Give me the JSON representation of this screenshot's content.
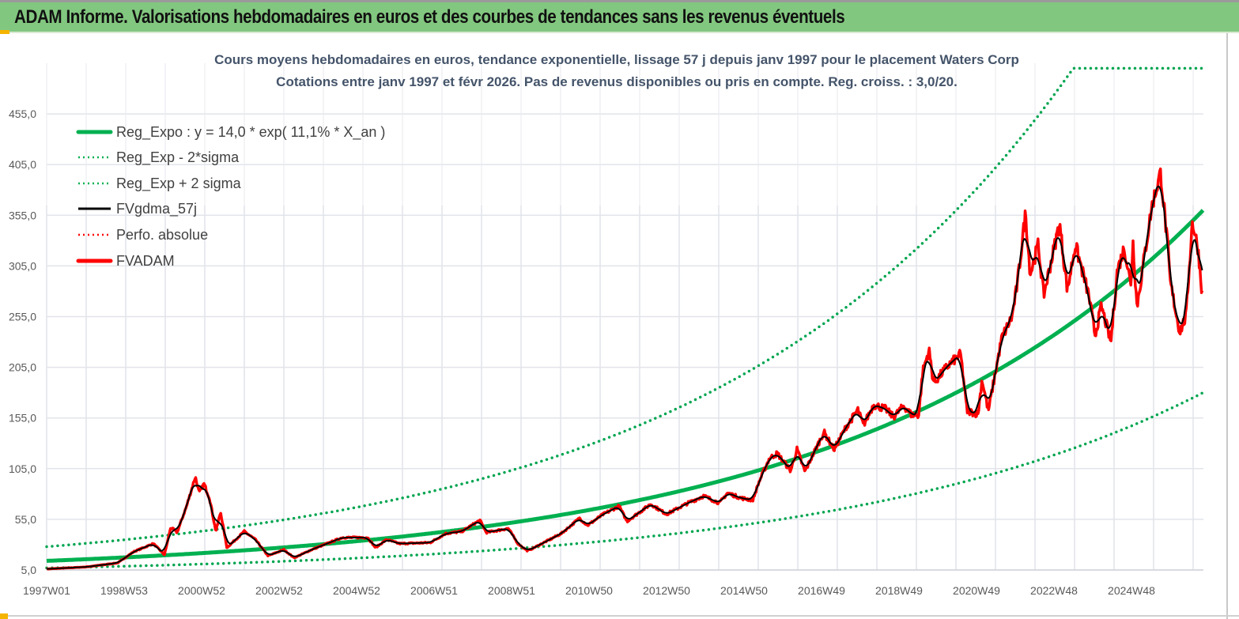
{
  "header": {
    "title": "ADAM Informe. Valorisations hebdomadaires en euros et des courbes de tendances sans les revenus éventuels"
  },
  "chart_data": {
    "type": "line",
    "title": "Cours moyens hebdomadaires en euros, tendance exponentielle, lissage 57 j depuis janv 1997 pour le placement Waters Corp",
    "subtitle": "Cotations entre janv 1997 et févr 2026. Pas de revenus disponibles ou pris en compte. Reg. croiss. : 3,0/20.",
    "xlabel": "",
    "ylabel": "",
    "xlim": [
      1997.0,
      2026.26
    ],
    "ylim": [
      5,
      505
    ],
    "grid": true,
    "legend_placement": "top-left",
    "yticks": [
      "5,0",
      "55,0",
      "105,0",
      "155,0",
      "205,0",
      "255,0",
      "305,0",
      "355,0",
      "405,0",
      "455,0"
    ],
    "ytick_values": [
      5,
      55,
      105,
      155,
      205,
      255,
      305,
      355,
      405,
      455
    ],
    "xtick_labels": [
      "1997W01",
      "1998W53",
      "2000W52",
      "2002W52",
      "2004W52",
      "2006W51",
      "2008W51",
      "2010W50",
      "2012W50",
      "2014W50",
      "2016W49",
      "2018W49",
      "2020W49",
      "2022W48",
      "2024W48"
    ],
    "xtick_step_years": 1.96,
    "regression": {
      "a": 14.0,
      "rate": 0.111,
      "upper_factor": 2,
      "lower_factor": 0.5,
      "upper_cap": 500
    },
    "legend": [
      {
        "label": "Reg_Expo : y = 14,0 * exp( 11,1% *  X_an )",
        "color": "#00b050",
        "style": "solid-thick"
      },
      {
        "label": "Reg_Exp - 2*sigma",
        "color": "#00b050",
        "style": "dotted"
      },
      {
        "label": "Reg_Exp + 2 sigma",
        "color": "#00b050",
        "style": "dotted"
      },
      {
        "label": "FVgdma_57j",
        "color": "#000000",
        "style": "solid"
      },
      {
        "label": "Perfo. absolue",
        "color": "#ff0000",
        "style": "dotted"
      },
      {
        "label": "FVADAM",
        "color": "#ff0000",
        "style": "solid-thick"
      }
    ],
    "series": [
      {
        "name": "FVADAM",
        "x": [
          1997.0,
          1998.0,
          1998.8,
          1999.2,
          1999.7,
          1999.98,
          2000.14,
          2000.3,
          2000.54,
          2000.76,
          2000.86,
          2000.98,
          2001.12,
          2001.28,
          2001.4,
          2001.56,
          2002.0,
          2002.28,
          2002.6,
          2003.0,
          2003.26,
          2003.7,
          2004.48,
          2005.12,
          2005.32,
          2005.6,
          2005.92,
          2006.7,
          2007.1,
          2007.5,
          2007.96,
          2008.12,
          2008.68,
          2008.92,
          2009.16,
          2009.28,
          2010.02,
          2010.48,
          2010.68,
          2011.08,
          2011.48,
          2011.68,
          2012.28,
          2012.68,
          2013.22,
          2013.62,
          2014.02,
          2014.22,
          2014.56,
          2014.86,
          2015.02,
          2015.28,
          2015.48,
          2015.82,
          2015.98,
          2016.18,
          2016.36,
          2016.66,
          2016.92,
          2017.22,
          2017.52,
          2017.66,
          2017.92,
          2018.22,
          2018.42,
          2018.68,
          2018.88,
          2019.06,
          2019.16,
          2019.32,
          2019.42,
          2019.48,
          2019.78,
          2020.12,
          2020.28,
          2020.56,
          2020.66,
          2020.82,
          2021.16,
          2021.42,
          2021.56,
          2021.76,
          2021.88,
          2022.08,
          2022.22,
          2022.62,
          2022.82,
          2023.02,
          2023.36,
          2023.52,
          2023.68,
          2023.92,
          2024.08,
          2024.26,
          2024.42,
          2024.48,
          2024.58,
          2024.96,
          2025.18,
          2025.36,
          2025.42,
          2025.66,
          2025.82,
          2025.98,
          2026.12,
          2026.24
        ],
        "y": [
          6,
          8,
          12,
          23,
          31,
          20,
          47,
          42,
          68,
          97,
          81,
          90,
          76,
          43,
          62,
          27,
          43,
          35,
          19,
          25,
          17,
          25,
          37,
          37,
          27,
          35,
          31,
          32,
          41,
          43,
          54,
          42,
          46,
          31,
          24,
          26,
          41,
          56,
          49,
          60,
          68,
          53,
          70,
          60,
          71,
          78,
          71,
          81,
          76,
          74,
          92,
          115,
          120,
          103,
          124,
          102,
          117,
          141,
          124,
          146,
          163,
          148,
          168,
          164,
          156,
          167,
          158,
          158,
          201,
          222,
          193,
          191,
          206,
          218,
          162,
          159,
          193,
          162,
          234,
          255,
          289,
          357,
          297,
          326,
          276,
          347,
          281,
          326,
          276,
          237,
          265,
          230,
          300,
          323,
          287,
          328,
          265,
          365,
          397,
          323,
          289,
          240,
          255,
          349,
          323,
          273
        ]
      },
      {
        "name": "FVgdma_57j",
        "derived_from": "FVADAM",
        "smoothing": "moving average 57 days"
      }
    ]
  }
}
